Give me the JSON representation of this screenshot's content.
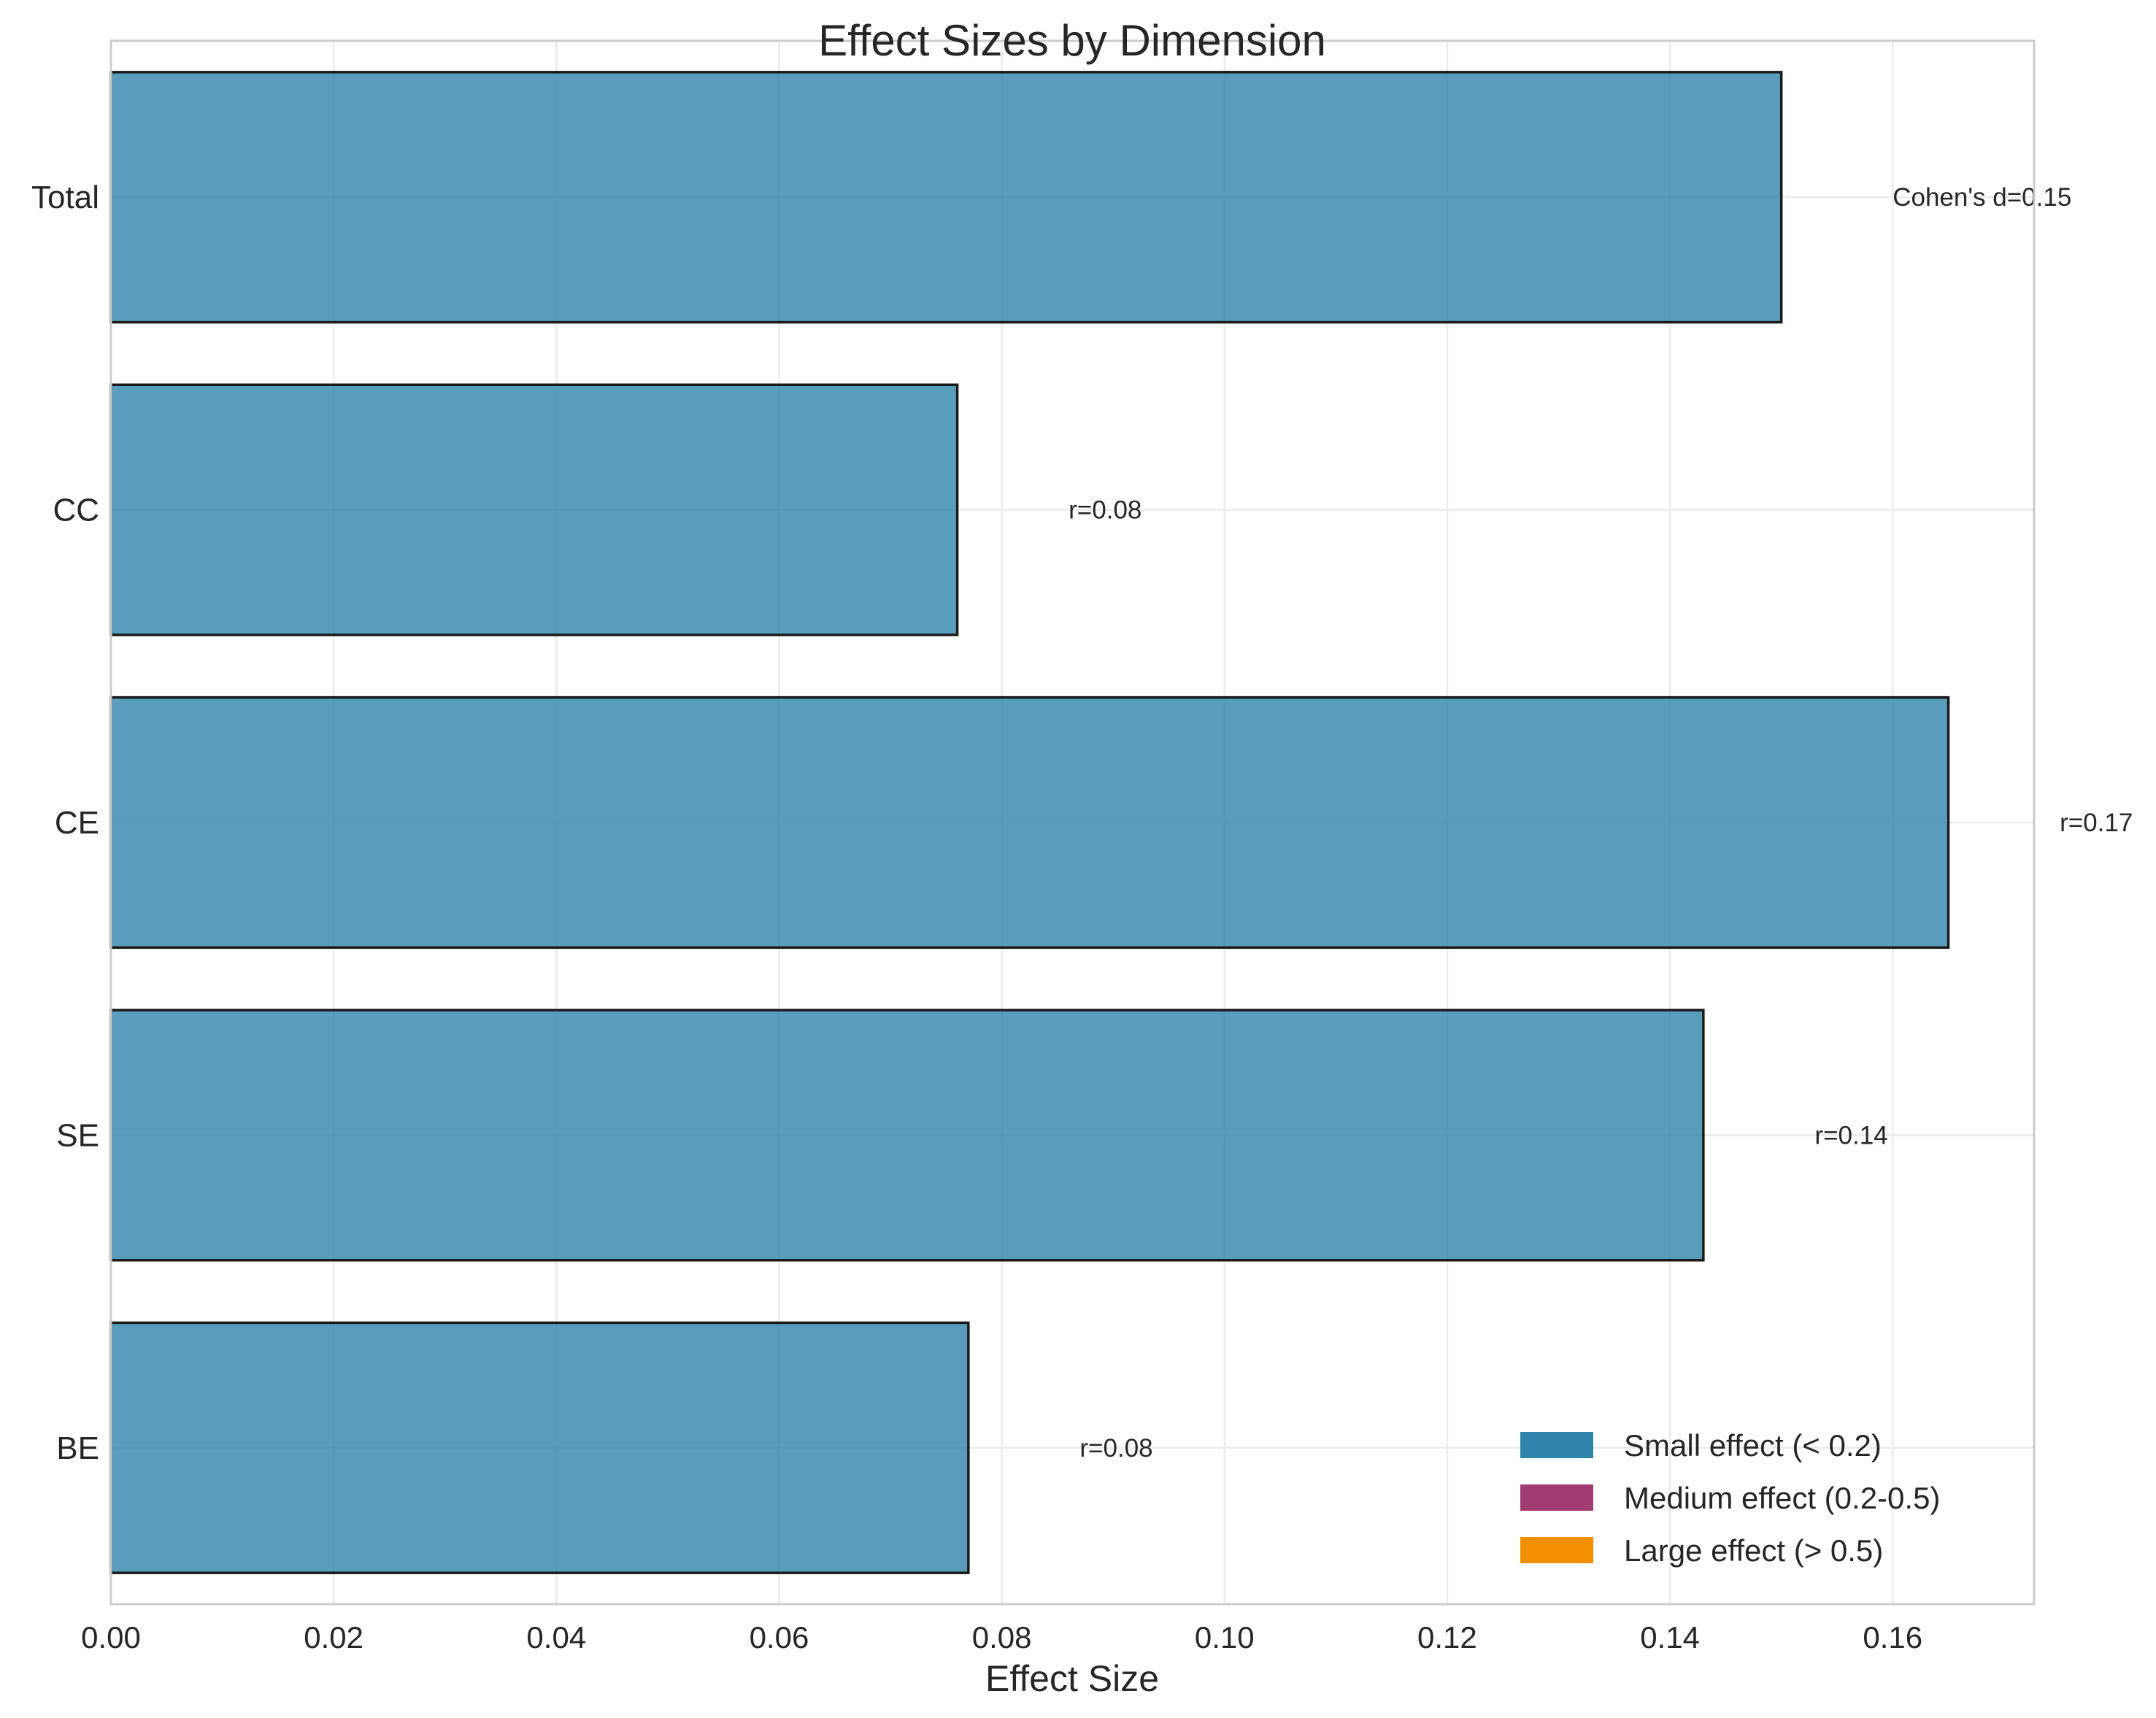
{
  "chart_data": {
    "type": "bar",
    "orientation": "horizontal",
    "title": "Effect Sizes by Dimension",
    "xlabel": "Effect Size",
    "ylabel": "",
    "xlim": [
      0,
      0.1727
    ],
    "xticks": [
      "0.00",
      "0.02",
      "0.04",
      "0.06",
      "0.08",
      "0.10",
      "0.12",
      "0.14",
      "0.16"
    ],
    "grid": true,
    "categories": [
      "Total",
      "CC",
      "CE",
      "SE",
      "BE"
    ],
    "values": [
      0.15,
      0.076,
      0.165,
      0.143,
      0.077
    ],
    "bar_labels": [
      "Cohen's d=0.15",
      "r=0.08",
      "r=0.17",
      "r=0.14",
      "r=0.08"
    ],
    "bar_color": "#2E86AB",
    "legend": {
      "placement": "lower-right",
      "entries": [
        {
          "label": "Small effect (< 0.2)",
          "color": "#2E86AB"
        },
        {
          "label": "Medium effect (0.2-0.5)",
          "color": "#A23B72"
        },
        {
          "label": "Large effect (> 0.5)",
          "color": "#F18F01"
        }
      ]
    }
  }
}
